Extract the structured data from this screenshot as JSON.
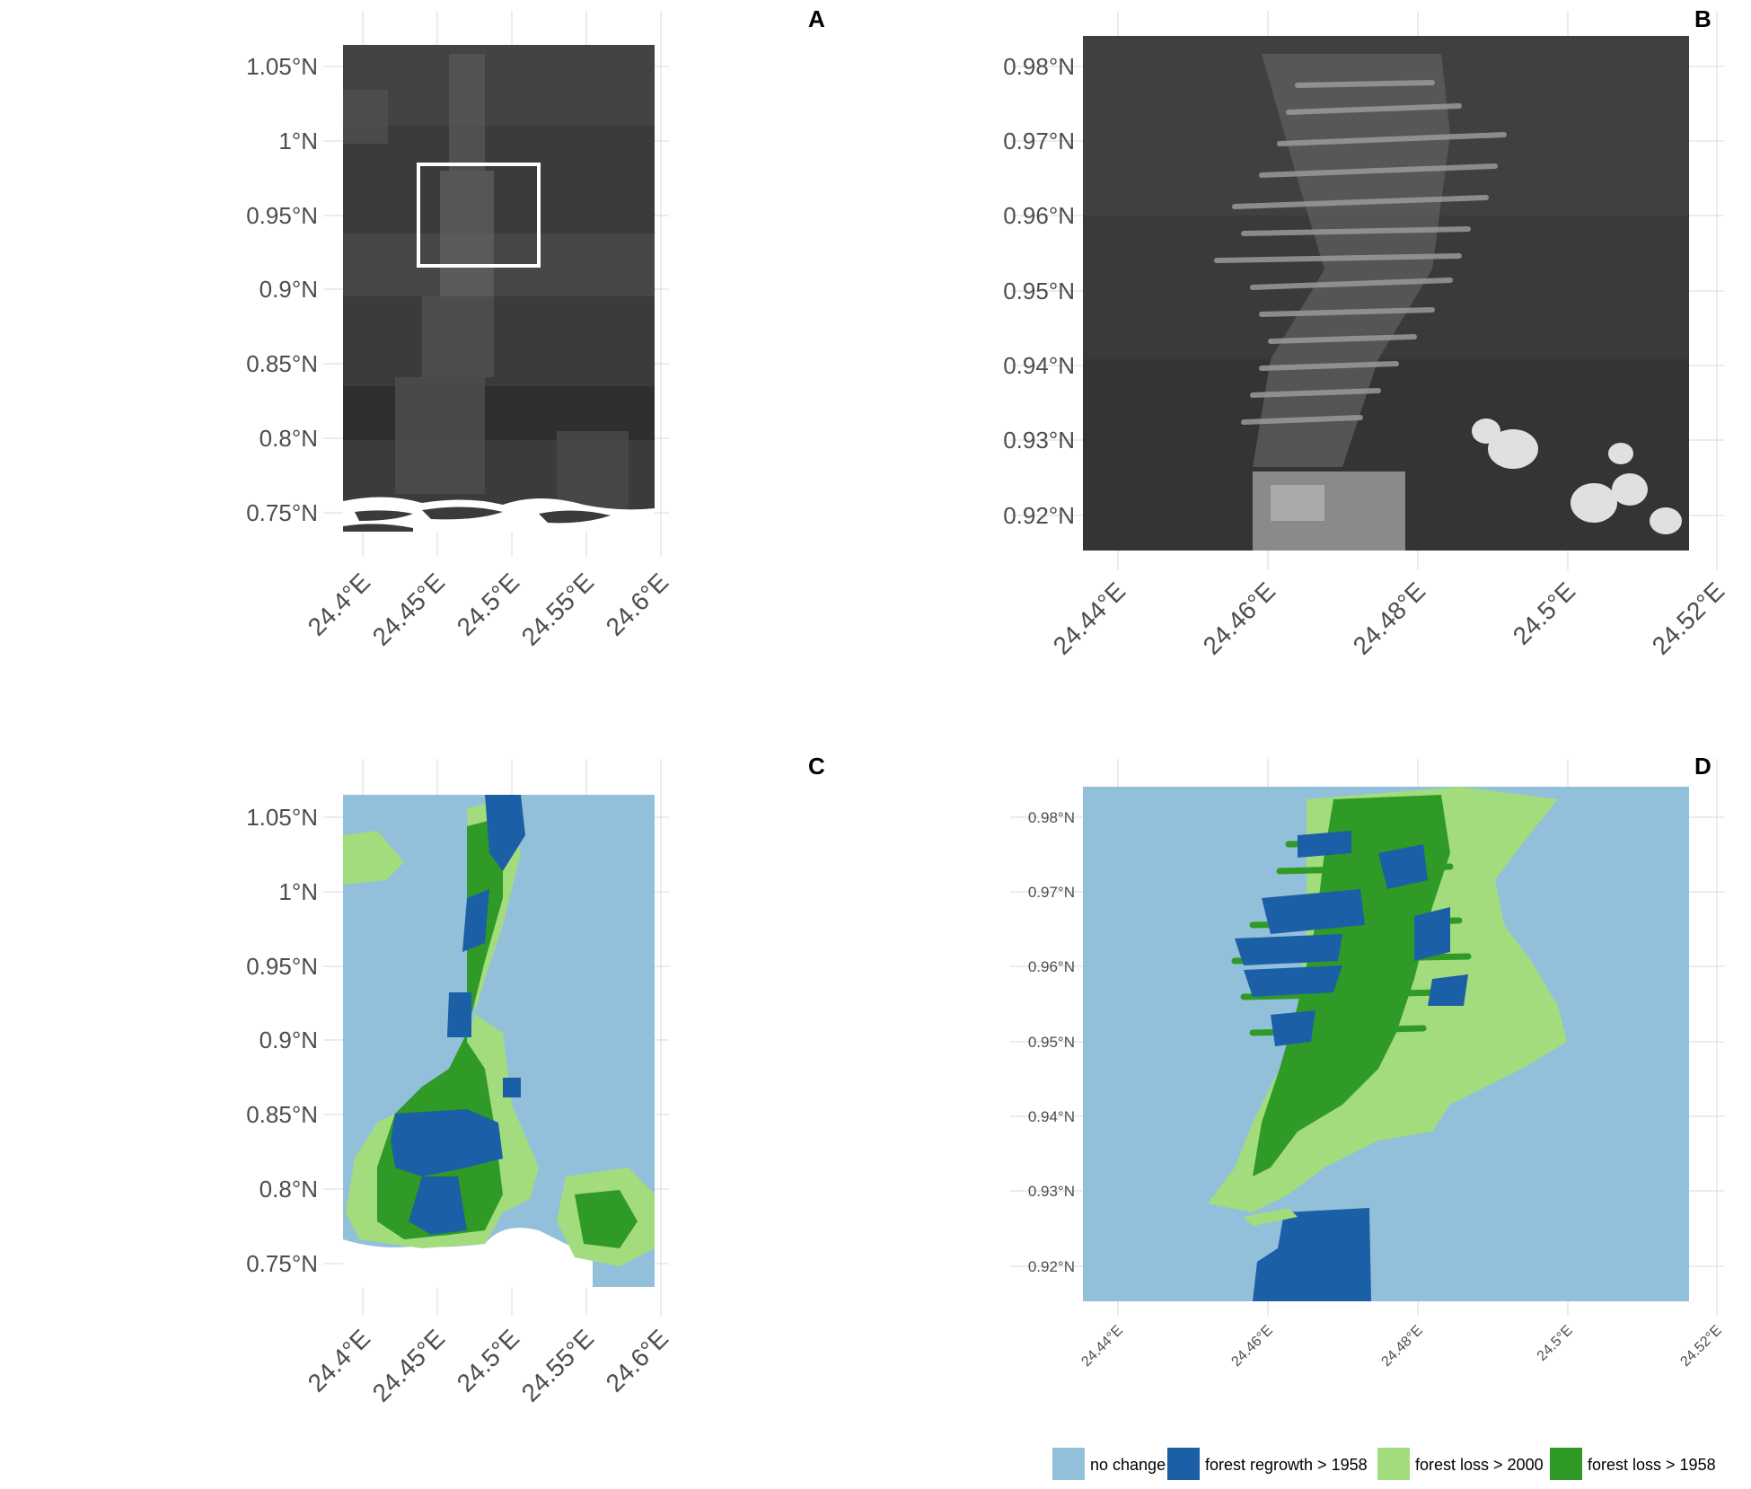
{
  "panels": {
    "A": {
      "label": "A",
      "x_ticks": [
        "24.4°E",
        "24.45°E",
        "24.5°E",
        "24.55°E",
        "24.6°E"
      ],
      "y_ticks": [
        "1.05°N",
        "1°N",
        "0.95°N",
        "0.9°N",
        "0.85°N",
        "0.8°N",
        "0.75°N"
      ]
    },
    "B": {
      "label": "B",
      "x_ticks": [
        "24.44°E",
        "24.46°E",
        "24.48°E",
        "24.5°E",
        "24.52°E"
      ],
      "y_ticks": [
        "0.98°N",
        "0.97°N",
        "0.96°N",
        "0.95°N",
        "0.94°N",
        "0.93°N",
        "0.92°N"
      ]
    },
    "C": {
      "label": "C",
      "x_ticks": [
        "24.4°E",
        "24.45°E",
        "24.5°E",
        "24.55°E",
        "24.6°E"
      ],
      "y_ticks": [
        "1.05°N",
        "1°N",
        "0.95°N",
        "0.9°N",
        "0.85°N",
        "0.8°N",
        "0.75°N"
      ]
    },
    "D": {
      "label": "D",
      "x_ticks": [
        "24.44°E",
        "24.46°E",
        "24.48°E",
        "24.5°E",
        "24.52°E"
      ],
      "y_ticks": [
        "0.98°N",
        "0.97°N",
        "0.96°N",
        "0.95°N",
        "0.94°N",
        "0.93°N",
        "0.92°N"
      ]
    }
  },
  "legend": [
    {
      "label": "no change",
      "color": "#92c0da"
    },
    {
      "label": "forest regrowth > 1958",
      "color": "#1b5fa6"
    },
    {
      "label": "forest loss > 2000",
      "color": "#a3dc7d"
    },
    {
      "label": "forest loss > 1958",
      "color": "#2f9a25"
    }
  ],
  "colors": {
    "no_change": "#92c0da",
    "regrowth": "#1b5fa6",
    "loss_2000": "#a3dc7d",
    "loss_1958": "#2f9a25",
    "imagery_dark": "#3a3a3a",
    "imagery_light": "#bdbdbd"
  }
}
